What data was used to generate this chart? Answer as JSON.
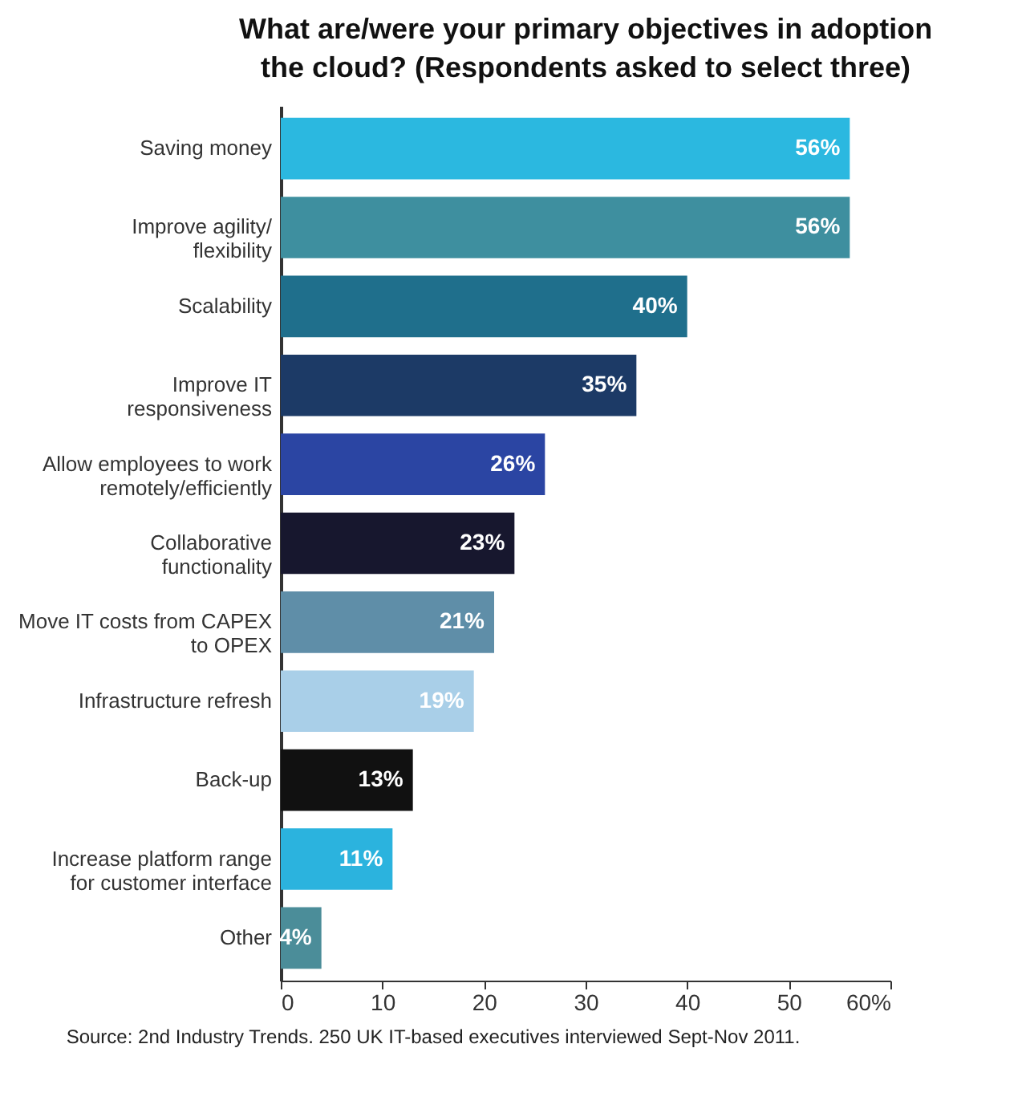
{
  "chart_data": {
    "type": "bar",
    "orientation": "horizontal",
    "title": "What are/were your primary objectives in adoption the cloud? (Respondents asked to select three)",
    "categories": [
      "Saving money",
      "Improve agility/ flexibility",
      "Scalability",
      "Improve IT responsiveness",
      "Allow employees to work remotely/efficiently",
      "Collaborative functionality",
      "Move IT costs from CAPEX to OPEX",
      "Infrastructure refresh",
      "Back-up",
      "Increase platform range for customer interface",
      "Other"
    ],
    "values": [
      56,
      56,
      40,
      35,
      26,
      23,
      21,
      19,
      13,
      11,
      4
    ],
    "colors": [
      "#2bb8e0",
      "#3e8f9f",
      "#1f6f8c",
      "#1c3a66",
      "#2b45a3",
      "#17172e",
      "#5f8ea8",
      "#a9cfe8",
      "#111111",
      "#2bb3de",
      "#4b8d99"
    ],
    "value_labels": [
      "56%",
      "56%",
      "40%",
      "35%",
      "26%",
      "23%",
      "21%",
      "19%",
      "13%",
      "11%",
      "4%"
    ],
    "xlim": [
      0,
      60
    ],
    "xticks": [
      0,
      10,
      20,
      30,
      40,
      50,
      {
        "value": 60,
        "label": "60%"
      }
    ],
    "grid": false,
    "annotations": [
      "Source: 2nd Industry Trends. 250 UK IT-based executives interviewed Sept-Nov 2011."
    ]
  }
}
